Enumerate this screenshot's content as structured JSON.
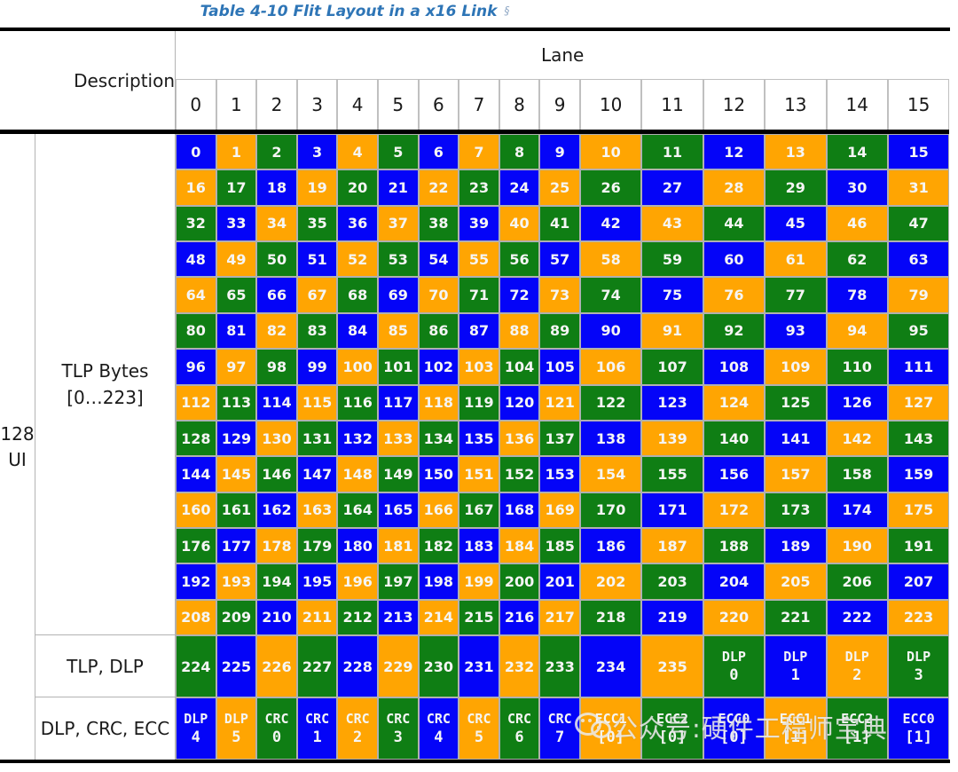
{
  "title": {
    "text": "Table 4-10 Flit Layout in a x16 Link",
    "anchor": "§"
  },
  "header": {
    "description_label": "Description",
    "lane_label": "Lane",
    "lane_numbers": [
      "0",
      "1",
      "2",
      "3",
      "4",
      "5",
      "6",
      "7",
      "8",
      "9",
      "10",
      "11",
      "12",
      "13",
      "14",
      "15"
    ]
  },
  "left_axis": {
    "line1": "128",
    "line2": "UI"
  },
  "row_groups": {
    "tlp_bytes_label_line1": "TLP Bytes",
    "tlp_bytes_label_line2": "[0…223]",
    "tlp_dlp_label": "TLP, DLP",
    "dlp_crc_ecc_label": "DLP, CRC, ECC"
  },
  "colors": {
    "byte_color_cycle": [
      "#0404f8",
      "#ffa502",
      "#0f7e14"
    ],
    "cell_border": "#b0b0b0",
    "divider_black": "#000000",
    "title_blue": "#2e75b6",
    "cell_text": "#f5f5f5"
  },
  "grid": {
    "tlp_rows": [
      [
        0,
        1,
        2,
        3,
        4,
        5,
        6,
        7,
        8,
        9,
        10,
        11,
        12,
        13,
        14,
        15
      ],
      [
        16,
        17,
        18,
        19,
        20,
        21,
        22,
        23,
        24,
        25,
        26,
        27,
        28,
        29,
        30,
        31
      ],
      [
        32,
        33,
        34,
        35,
        36,
        37,
        38,
        39,
        40,
        41,
        42,
        43,
        44,
        45,
        46,
        47
      ],
      [
        48,
        49,
        50,
        51,
        52,
        53,
        54,
        55,
        56,
        57,
        58,
        59,
        60,
        61,
        62,
        63
      ],
      [
        64,
        65,
        66,
        67,
        68,
        69,
        70,
        71,
        72,
        73,
        74,
        75,
        76,
        77,
        78,
        79
      ],
      [
        80,
        81,
        82,
        83,
        84,
        85,
        86,
        87,
        88,
        89,
        90,
        91,
        92,
        93,
        94,
        95
      ],
      [
        96,
        97,
        98,
        99,
        100,
        101,
        102,
        103,
        104,
        105,
        106,
        107,
        108,
        109,
        110,
        111
      ],
      [
        112,
        113,
        114,
        115,
        116,
        117,
        118,
        119,
        120,
        121,
        122,
        123,
        124,
        125,
        126,
        127
      ],
      [
        128,
        129,
        130,
        131,
        132,
        133,
        134,
        135,
        136,
        137,
        138,
        139,
        140,
        141,
        142,
        143
      ],
      [
        144,
        145,
        146,
        147,
        148,
        149,
        150,
        151,
        152,
        153,
        154,
        155,
        156,
        157,
        158,
        159
      ],
      [
        160,
        161,
        162,
        163,
        164,
        165,
        166,
        167,
        168,
        169,
        170,
        171,
        172,
        173,
        174,
        175
      ],
      [
        176,
        177,
        178,
        179,
        180,
        181,
        182,
        183,
        184,
        185,
        186,
        187,
        188,
        189,
        190,
        191
      ],
      [
        192,
        193,
        194,
        195,
        196,
        197,
        198,
        199,
        200,
        201,
        202,
        203,
        204,
        205,
        206,
        207
      ],
      [
        208,
        209,
        210,
        211,
        212,
        213,
        214,
        215,
        216,
        217,
        218,
        219,
        220,
        221,
        222,
        223
      ]
    ],
    "tlp_dlp_row": [
      "224",
      "225",
      "226",
      "227",
      "228",
      "229",
      "230",
      "231",
      "232",
      "233",
      "234",
      "235",
      [
        "DLP",
        "0"
      ],
      [
        "DLP",
        "1"
      ],
      [
        "DLP",
        "2"
      ],
      [
        "DLP",
        "3"
      ]
    ],
    "dlp_crc_ecc_row": [
      [
        "DLP",
        "4"
      ],
      [
        "DLP",
        "5"
      ],
      [
        "CRC",
        "0"
      ],
      [
        "CRC",
        "1"
      ],
      [
        "CRC",
        "2"
      ],
      [
        "CRC",
        "3"
      ],
      [
        "CRC",
        "4"
      ],
      [
        "CRC",
        "5"
      ],
      [
        "CRC",
        "6"
      ],
      [
        "CRC",
        "7"
      ],
      [
        "ECC1",
        "[0]"
      ],
      [
        "ECC2",
        "[0]"
      ],
      [
        "ECC0",
        "[0]"
      ],
      [
        "ECC1",
        "[1]"
      ],
      [
        "ECC2",
        "[1]"
      ],
      [
        "ECC0",
        "[1]"
      ]
    ]
  },
  "watermark": {
    "icon": "wechat-icon",
    "text": "公众号:硬件工程师宝典"
  }
}
